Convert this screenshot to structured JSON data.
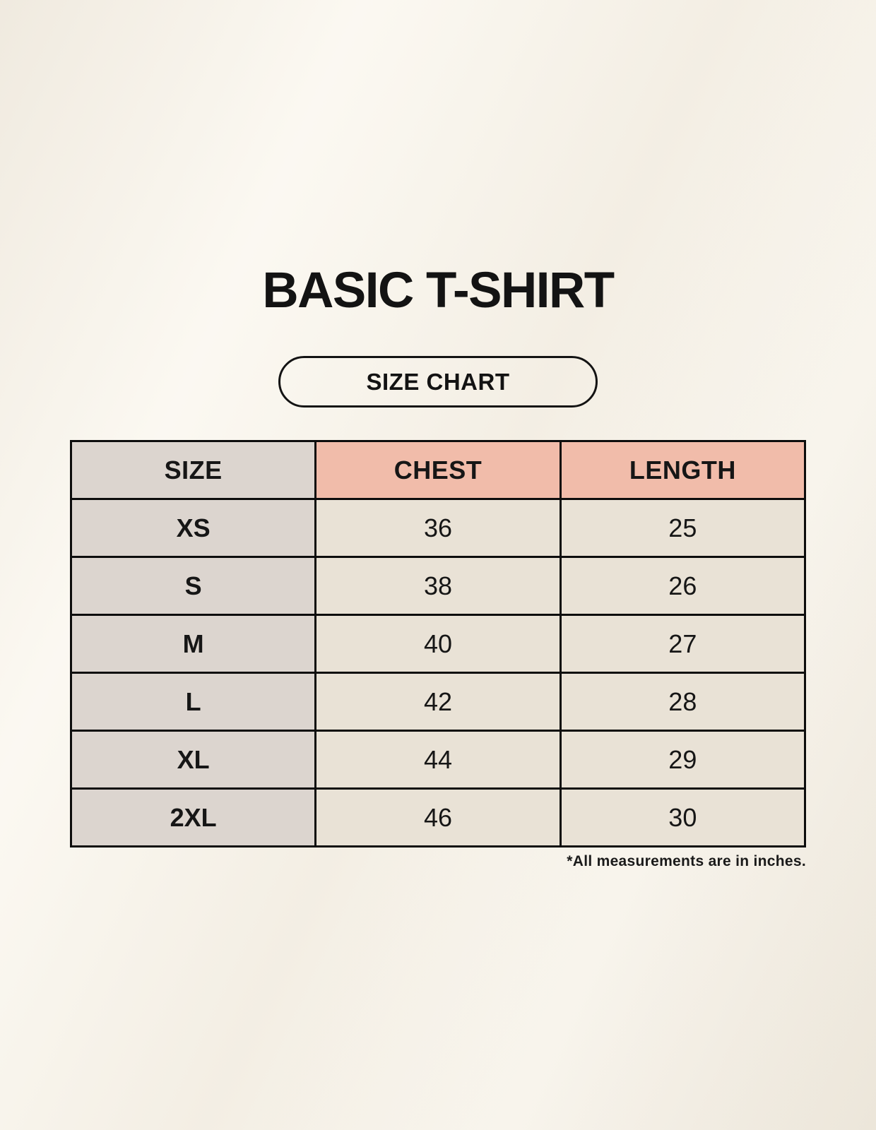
{
  "header": {
    "title": "BASIC T-SHIRT",
    "badge_label": "SIZE CHART"
  },
  "footnote": "*All measurements are in inches.",
  "colors": {
    "page_background": "#f7f3ea",
    "size_column_header": "#dcd5cf",
    "measurement_header": "#f1bcaa",
    "row_label_cell": "#dcd5cf",
    "value_cell": "#e9e2d6",
    "border": "#0d0d0d",
    "text": "#161616"
  },
  "chart_data": {
    "type": "table",
    "title": "BASIC T-SHIRT",
    "subtitle": "SIZE CHART",
    "columns": [
      "SIZE",
      "CHEST",
      "LENGTH"
    ],
    "rows": [
      [
        "XS",
        "36",
        "25"
      ],
      [
        "S",
        "38",
        "26"
      ],
      [
        "M",
        "40",
        "27"
      ],
      [
        "L",
        "42",
        "28"
      ],
      [
        "XL",
        "44",
        "29"
      ],
      [
        "2XL",
        "46",
        "30"
      ]
    ],
    "units": "inches",
    "units_note": "*All measurements are in inches."
  }
}
